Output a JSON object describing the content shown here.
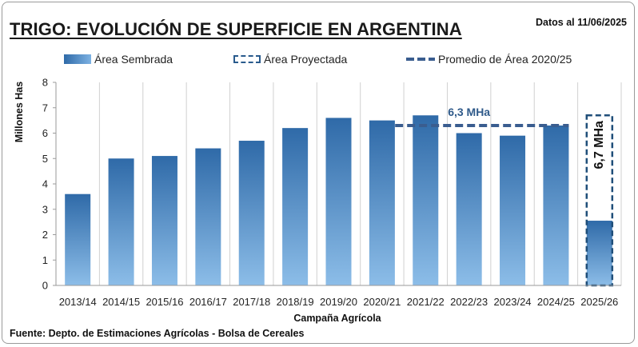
{
  "header": {
    "title": "TRIGO: EVOLUCIÓN DE SUPERFICIE EN ARGENTINA",
    "date_note": "Datos al 11/06/2025"
  },
  "legend": {
    "sown": "Área Sembrada",
    "projected": "Área Proyectada",
    "average": "Promedio de Área 2020/25"
  },
  "footer": {
    "source": "Fuente: Depto. de Estimaciones Agrícolas - Bolsa de Cereales"
  },
  "colors": {
    "bar_dark": "#2f6aa8",
    "bar_light": "#8cbde8",
    "projected_border": "#1f4e79",
    "average_line": "#3a5d8f",
    "grid": "#d0d0d0"
  },
  "chart_data": {
    "type": "bar",
    "title": "TRIGO: EVOLUCIÓN DE SUPERFICIE EN ARGENTINA",
    "xlabel": "Campaña Agrícola",
    "ylabel": "Millones Has",
    "ylim": [
      0,
      8
    ],
    "yticks": [
      "0",
      "1",
      "2",
      "3",
      "4",
      "5",
      "6",
      "7",
      "8"
    ],
    "grid": "vertical",
    "legend_position": "top",
    "categories": [
      "2013/14",
      "2014/15",
      "2015/16",
      "2016/17",
      "2017/18",
      "2018/19",
      "2019/20",
      "2020/21",
      "2021/22",
      "2022/23",
      "2023/24",
      "2024/25",
      "2025/26"
    ],
    "series": [
      {
        "name": "Área Sembrada",
        "values": [
          3.6,
          5.0,
          5.1,
          5.4,
          5.7,
          6.2,
          6.6,
          6.5,
          6.7,
          6.0,
          5.9,
          6.3,
          2.55
        ]
      },
      {
        "name": "Área Proyectada",
        "values": [
          null,
          null,
          null,
          null,
          null,
          null,
          null,
          null,
          null,
          null,
          null,
          null,
          6.7
        ]
      }
    ],
    "average": {
      "name": "Promedio de Área 2020/25",
      "value": 6.3,
      "from": "2020/21",
      "to": "2024/25",
      "label": "6,3 MHa"
    },
    "projected_label": "6,7 MHa"
  }
}
